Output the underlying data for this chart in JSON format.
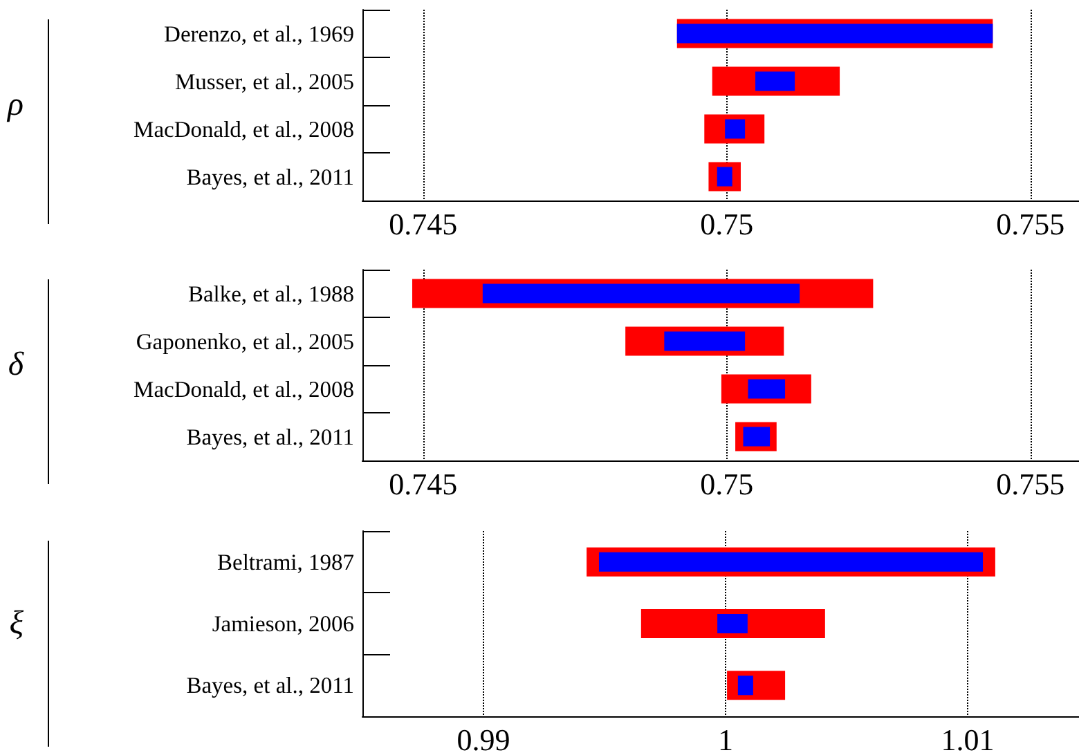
{
  "chart_data": [
    {
      "type": "bar",
      "orientation": "horizontal",
      "ylabel": "ρ",
      "categories": [
        "Derenzo, et al., 1969",
        "Musser, et al., 2005",
        "MacDonald, et al., 2008",
        "Bayes, et al., 2011"
      ],
      "xlim": [
        0.744,
        0.7558
      ],
      "xticks": [
        0.745,
        0.75,
        0.755
      ],
      "grid": "x",
      "series": [
        {
          "color": "#ff0000",
          "base": [
            0.74918,
            0.74976,
            0.74963,
            0.7497
          ],
          "values": [
            0.0052,
            0.0021,
            0.00099,
            0.00053
          ]
        },
        {
          "color": "#0000ff",
          "base": [
            0.74918,
            0.75047,
            0.74997,
            0.74984
          ],
          "values": [
            0.0052,
            0.00065,
            0.00033,
            0.00025
          ]
        }
      ]
    },
    {
      "type": "bar",
      "orientation": "horizontal",
      "ylabel": "δ",
      "categories": [
        "Balke, et al., 1988",
        "Gaponenko, et al., 2005",
        "MacDonald, et al., 2008",
        "Bayes, et al., 2011"
      ],
      "xlim": [
        0.744,
        0.7558
      ],
      "xticks": [
        0.745,
        0.75,
        0.755
      ],
      "grid": "x",
      "series": [
        {
          "color": "#ff0000",
          "base": [
            0.74482,
            0.74833,
            0.74991,
            0.75014
          ],
          "values": [
            0.00759,
            0.00261,
            0.00148,
            0.00068
          ]
        },
        {
          "color": "#0000ff",
          "base": [
            0.74598,
            0.74897,
            0.75035,
            0.75027
          ],
          "values": [
            0.00522,
            0.00133,
            0.00061,
            0.00044
          ]
        }
      ]
    },
    {
      "type": "bar",
      "orientation": "horizontal",
      "ylabel": "ξ",
      "categories": [
        "Beltrami, 1987",
        "Jamieson, 2006",
        "Bayes, et al., 2011"
      ],
      "xlim": [
        0.985,
        1.0146
      ],
      "xticks": [
        0.99,
        1,
        1.01
      ],
      "grid": "x",
      "series": [
        {
          "color": "#ff0000",
          "base": [
            0.99426,
            0.99651,
            1.00006
          ],
          "values": [
            0.01688,
            0.0076,
            0.0024
          ]
        },
        {
          "color": "#0000ff",
          "base": [
            0.99477,
            0.99966,
            1.00051
          ],
          "values": [
            0.01586,
            0.00125,
            0.00063
          ]
        }
      ]
    }
  ]
}
